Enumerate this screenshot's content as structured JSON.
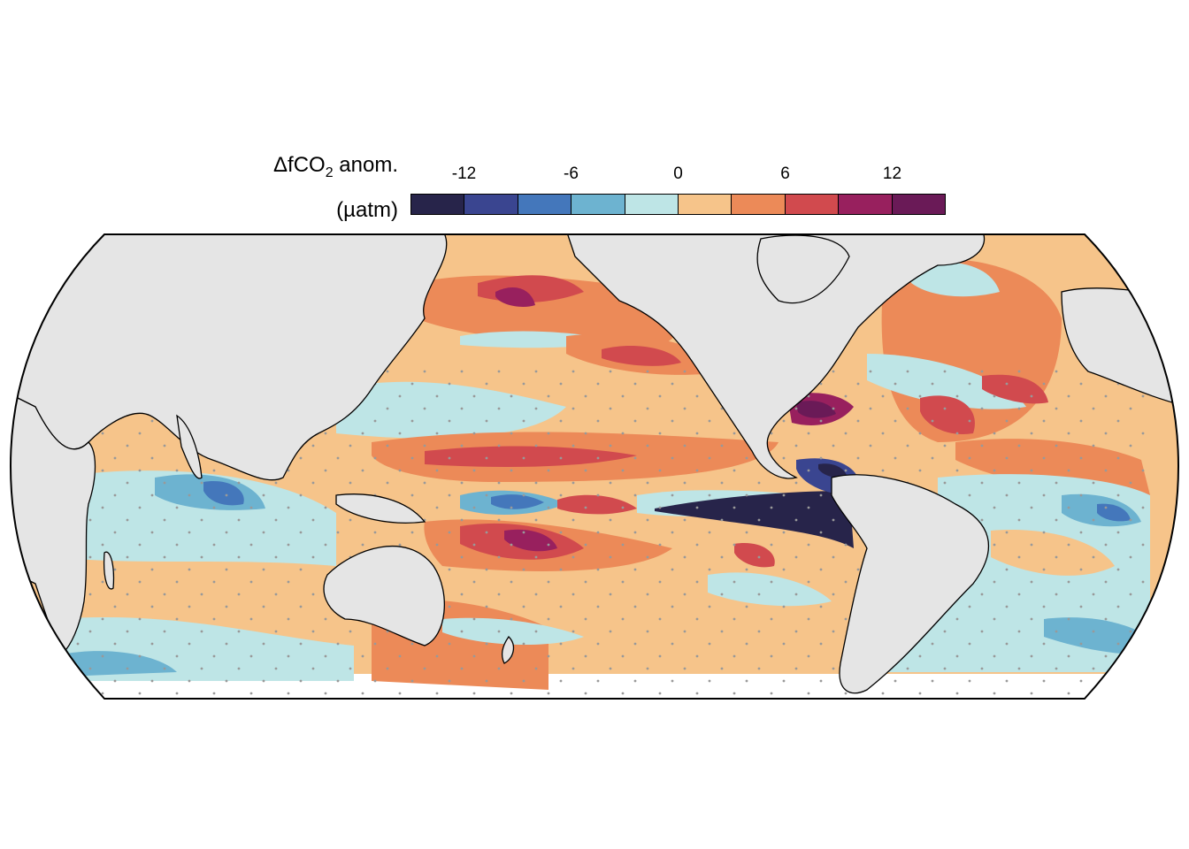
{
  "legend": {
    "title_line1": "ΔfCO",
    "title_subscript": "2",
    "title_suffix": " anom.",
    "title_line2": "(µatm)",
    "tick_labels": [
      "-12",
      "-6",
      "0",
      "6",
      "12"
    ],
    "tick_values": [
      -12,
      -6,
      0,
      6,
      12
    ],
    "range": [
      -15,
      15
    ],
    "bins": [
      {
        "min": -15,
        "max": -12,
        "color": "#27244a"
      },
      {
        "min": -12,
        "max": -9,
        "color": "#3a4590"
      },
      {
        "min": -9,
        "max": -6,
        "color": "#4477bb"
      },
      {
        "min": -6,
        "max": -3,
        "color": "#6db3d0"
      },
      {
        "min": -3,
        "max": 0,
        "color": "#bee5e6"
      },
      {
        "min": 0,
        "max": 3,
        "color": "#f6c48a"
      },
      {
        "min": 3,
        "max": 6,
        "color": "#ec8a58"
      },
      {
        "min": 6,
        "max": 9,
        "color": "#d14a4e"
      },
      {
        "min": 9,
        "max": 12,
        "color": "#98205e"
      },
      {
        "min": 12,
        "max": 15,
        "color": "#6a1a57"
      }
    ]
  },
  "map": {
    "projection": "Eckert-like, Pacific-centred",
    "land_color": "#e5e5e5",
    "missing_color": "#ffffff",
    "stipple_color": "#999999"
  }
}
